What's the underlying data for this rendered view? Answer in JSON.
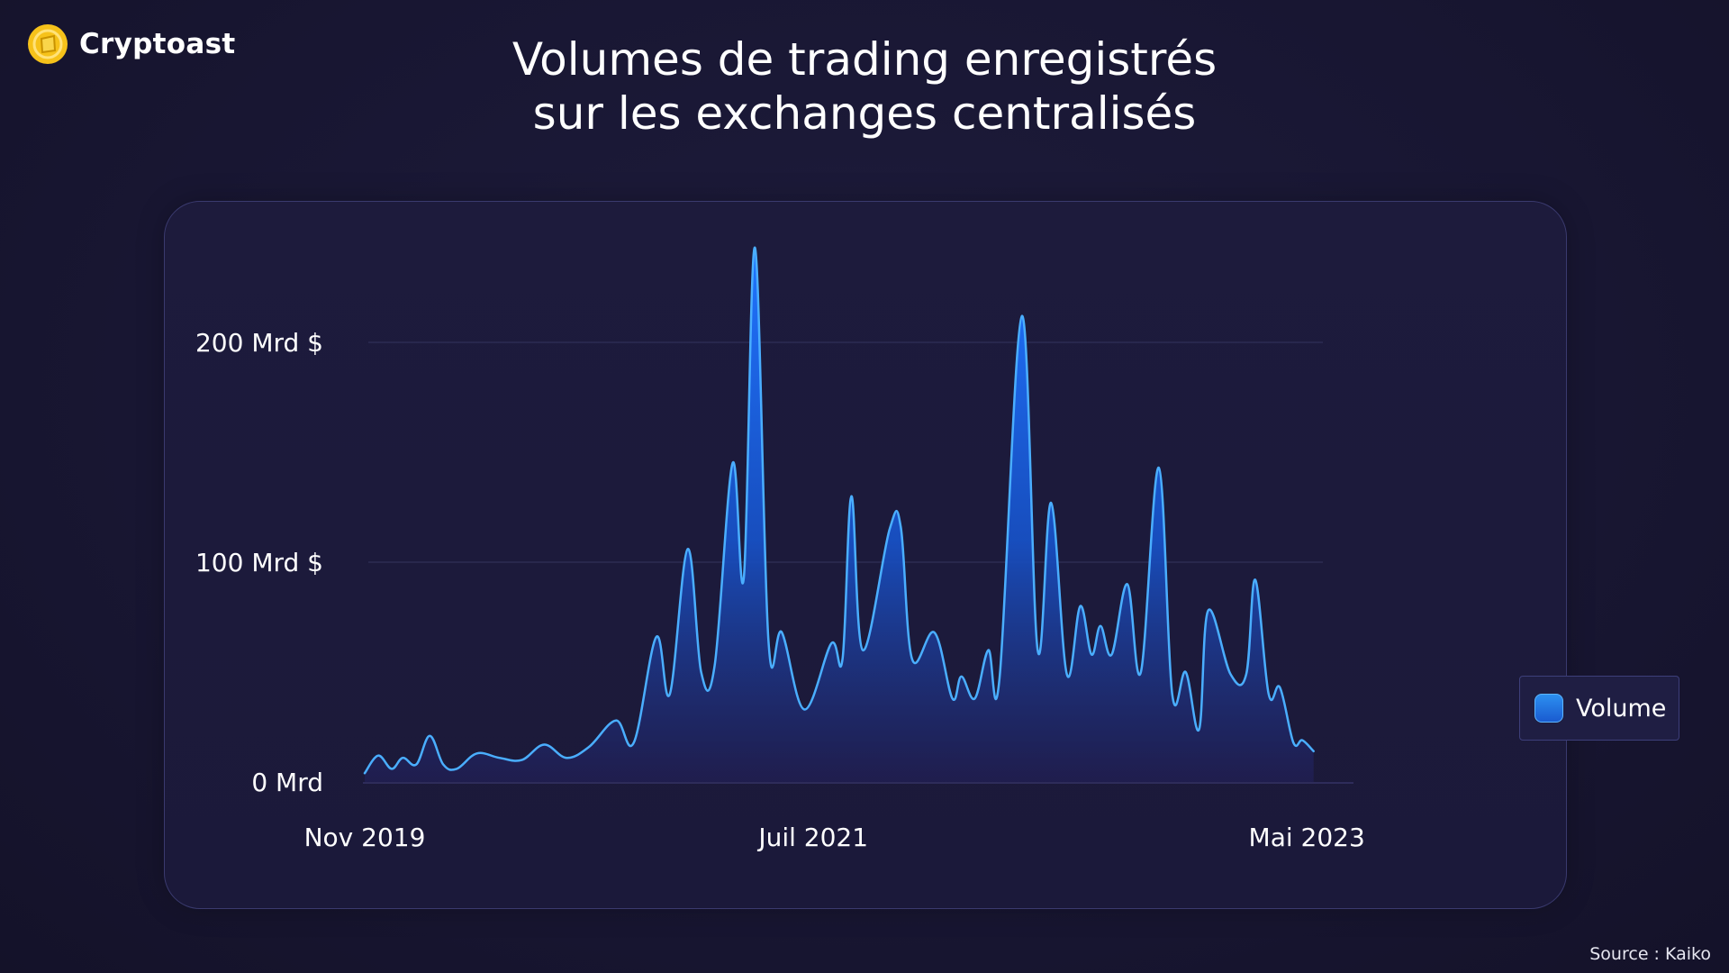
{
  "brand": {
    "name": "Cryptoast",
    "logo_icon": "cryptoast-logo-icon",
    "logo_color": "#f6c21a"
  },
  "header": {
    "title_line1": "Volumes de trading enregistrés",
    "title_line2": "sur les exchanges centralisés"
  },
  "source": "Source : Kaiko",
  "colors": {
    "line": "#4aaeff",
    "fill_top": "#1a66e6",
    "fill_bottom": "#1f1d45",
    "grid": "#34345e"
  },
  "chart_data": {
    "type": "area",
    "title": "Volumes de trading enregistrés sur les exchanges centralisés",
    "xlabel": "",
    "ylabel": "",
    "unit": "Mrd $",
    "ylim": [
      0,
      250
    ],
    "yticks": [
      {
        "value": 0,
        "label": "0 Mrd"
      },
      {
        "value": 100,
        "label": "100 Mrd $"
      },
      {
        "value": 200,
        "label": "200 Mrd $"
      }
    ],
    "xlim": [
      0,
      44
    ],
    "xticks": [
      {
        "value": 0,
        "label": "Nov 2019"
      },
      {
        "value": 20,
        "label": "Juil 2021"
      },
      {
        "value": 42,
        "label": "Mai 2023"
      }
    ],
    "legend": {
      "label": "Volume",
      "position": "right"
    },
    "series": [
      {
        "name": "Volume",
        "points": [
          [
            0,
            4
          ],
          [
            0.6,
            12
          ],
          [
            1.2,
            6
          ],
          [
            1.7,
            11
          ],
          [
            2.3,
            8
          ],
          [
            2.9,
            21
          ],
          [
            3.5,
            8
          ],
          [
            4.1,
            6
          ],
          [
            5,
            13
          ],
          [
            6,
            11
          ],
          [
            7,
            10
          ],
          [
            8,
            17
          ],
          [
            9,
            11
          ],
          [
            10,
            16
          ],
          [
            11.2,
            28
          ],
          [
            12,
            18
          ],
          [
            13,
            66
          ],
          [
            13.6,
            40
          ],
          [
            14.4,
            106
          ],
          [
            15,
            50
          ],
          [
            15.6,
            53
          ],
          [
            16.4,
            145
          ],
          [
            16.9,
            93
          ],
          [
            17.4,
            243
          ],
          [
            18,
            64
          ],
          [
            18.6,
            68
          ],
          [
            19.6,
            33
          ],
          [
            20.8,
            63
          ],
          [
            21.3,
            56
          ],
          [
            21.7,
            130
          ],
          [
            22.2,
            60
          ],
          [
            23.4,
            115
          ],
          [
            23.9,
            116
          ],
          [
            24.4,
            56
          ],
          [
            25.4,
            68
          ],
          [
            26.2,
            38
          ],
          [
            26.6,
            48
          ],
          [
            27.2,
            38
          ],
          [
            27.8,
            60
          ],
          [
            28.3,
            47
          ],
          [
            29.3,
            212
          ],
          [
            30,
            60
          ],
          [
            30.6,
            127
          ],
          [
            31.3,
            49
          ],
          [
            31.9,
            80
          ],
          [
            32.4,
            58
          ],
          [
            32.8,
            71
          ],
          [
            33.3,
            58
          ],
          [
            34,
            90
          ],
          [
            34.6,
            50
          ],
          [
            35.4,
            143
          ],
          [
            36,
            40
          ],
          [
            36.6,
            50
          ],
          [
            37.2,
            24
          ],
          [
            37.6,
            78
          ],
          [
            38.6,
            49
          ],
          [
            39.3,
            49
          ],
          [
            39.7,
            92
          ],
          [
            40.3,
            40
          ],
          [
            40.8,
            43
          ],
          [
            41.4,
            18
          ],
          [
            41.8,
            19
          ],
          [
            42.3,
            14
          ]
        ]
      }
    ]
  }
}
